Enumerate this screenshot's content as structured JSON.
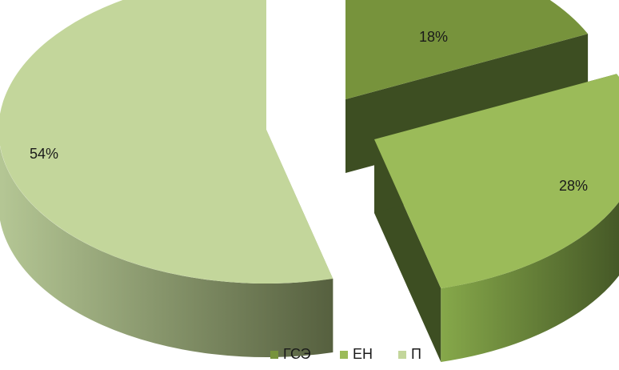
{
  "chart_data": {
    "type": "pie",
    "title": "",
    "categories": [
      "ГСЭ",
      "ЕН",
      "П"
    ],
    "values": [
      18,
      28,
      54
    ],
    "data_labels": [
      "18%",
      "28%",
      "54%"
    ],
    "colors": [
      "#77933c",
      "#9bbb59",
      "#c3d69b"
    ],
    "side_colors": [
      "#3d4e22",
      "#3d4e22",
      "#9fae7c"
    ],
    "exploded": true,
    "three_d": true,
    "legend": "bottom"
  }
}
